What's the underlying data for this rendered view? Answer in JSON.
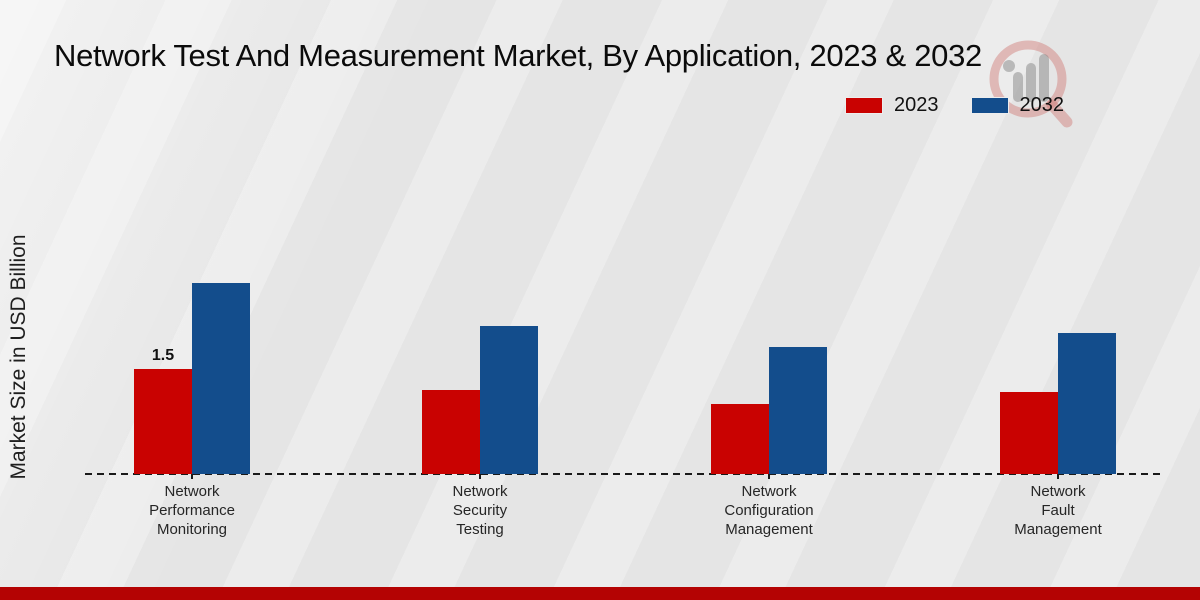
{
  "title": "Network Test And Measurement Market, By Application, 2023 & 2032",
  "y_axis": {
    "label": "Market Size in USD Billion"
  },
  "legend": {
    "items": [
      {
        "label": "2023",
        "color": "#c90201"
      },
      {
        "label": "2032",
        "color": "#134d8c"
      }
    ]
  },
  "watermark": {
    "icon": "magnifier-growth-bars-logo"
  },
  "footer": {
    "bar_color": "#b40303"
  },
  "chart_data": {
    "type": "bar",
    "title": "Network Test And Measurement Market, By Application, 2023 & 2032",
    "ylabel": "Market Size in USD Billion",
    "xlabel": "",
    "categories": [
      "Network Performance Monitoring",
      "Network Security Testing",
      "Network Configuration Management",
      "Network Fault Management"
    ],
    "categories_wrapped": [
      "Network\nPerformance\nMonitoring",
      "Network\nSecurity\nTesting",
      "Network\nConfiguration\nManagement",
      "Network\nFault\nManagement"
    ],
    "series": [
      {
        "name": "2023",
        "color": "#c90201",
        "values": [
          1.5,
          1.2,
          1.0,
          1.17
        ]
      },
      {
        "name": "2032",
        "color": "#134d8c",
        "values": [
          2.73,
          2.11,
          1.81,
          2.01
        ]
      }
    ],
    "ylim": [
      0,
      3
    ],
    "grid": false,
    "legend_position": "top-right",
    "baseline_style": "dashed",
    "data_labels": [
      {
        "series": "2023",
        "category_index": 0,
        "text": "1.5"
      }
    ]
  }
}
